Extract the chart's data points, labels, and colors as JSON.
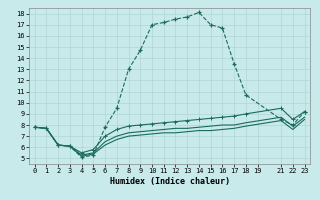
{
  "xlabel": "Humidex (Indice chaleur)",
  "ylabel": "",
  "bg_color": "#c8eaea",
  "grid_color": "#b0d4d4",
  "line_color": "#1a6b5a",
  "xlim": [
    -0.5,
    23.5
  ],
  "ylim": [
    4.5,
    18.5
  ],
  "xticks": [
    0,
    1,
    2,
    3,
    4,
    5,
    6,
    7,
    8,
    9,
    10,
    11,
    12,
    13,
    14,
    15,
    16,
    17,
    18,
    19,
    21,
    22,
    23
  ],
  "xtick_labels": [
    "0",
    "1",
    "2",
    "3",
    "4",
    "5",
    "6",
    "7",
    "8",
    "9",
    "10",
    "11",
    "12",
    "13",
    "14",
    "15",
    "16",
    "17",
    "18",
    "19",
    "21",
    "22",
    "23"
  ],
  "yticks": [
    5,
    6,
    7,
    8,
    9,
    10,
    11,
    12,
    13,
    14,
    15,
    16,
    17,
    18
  ],
  "curve1_x": [
    0,
    1,
    2,
    3,
    4,
    5,
    6,
    7,
    8,
    9,
    10,
    11,
    12,
    13,
    14,
    15,
    16,
    17,
    18,
    21,
    22,
    23
  ],
  "curve1_y": [
    7.8,
    7.7,
    6.2,
    6.1,
    5.1,
    5.3,
    7.8,
    9.5,
    13.0,
    14.7,
    17.0,
    17.2,
    17.5,
    17.7,
    18.1,
    17.0,
    16.7,
    13.5,
    10.7,
    8.5,
    8.0,
    9.2
  ],
  "curve2_x": [
    0,
    1,
    2,
    3,
    4,
    5,
    6,
    7,
    8,
    9,
    10,
    11,
    12,
    13,
    14,
    15,
    16,
    17,
    18,
    21,
    22,
    23
  ],
  "curve2_y": [
    7.8,
    7.7,
    6.2,
    6.1,
    5.5,
    5.8,
    7.0,
    7.6,
    7.9,
    8.0,
    8.1,
    8.2,
    8.3,
    8.4,
    8.5,
    8.6,
    8.7,
    8.8,
    9.0,
    9.5,
    8.5,
    9.2
  ],
  "curve3_x": [
    0,
    1,
    2,
    3,
    4,
    5,
    6,
    7,
    8,
    9,
    10,
    11,
    12,
    13,
    14,
    15,
    16,
    17,
    18,
    21,
    22,
    23
  ],
  "curve3_y": [
    7.8,
    7.7,
    6.2,
    6.1,
    5.3,
    5.5,
    6.5,
    7.0,
    7.3,
    7.4,
    7.5,
    7.6,
    7.7,
    7.7,
    7.8,
    7.9,
    8.0,
    8.0,
    8.2,
    8.7,
    7.9,
    8.7
  ],
  "curve4_x": [
    0,
    1,
    2,
    3,
    4,
    5,
    6,
    7,
    8,
    9,
    10,
    11,
    12,
    13,
    14,
    15,
    16,
    17,
    18,
    21,
    22,
    23
  ],
  "curve4_y": [
    7.8,
    7.7,
    6.2,
    6.1,
    5.2,
    5.4,
    6.2,
    6.7,
    7.0,
    7.1,
    7.2,
    7.3,
    7.3,
    7.4,
    7.5,
    7.5,
    7.6,
    7.7,
    7.9,
    8.4,
    7.6,
    8.5
  ]
}
